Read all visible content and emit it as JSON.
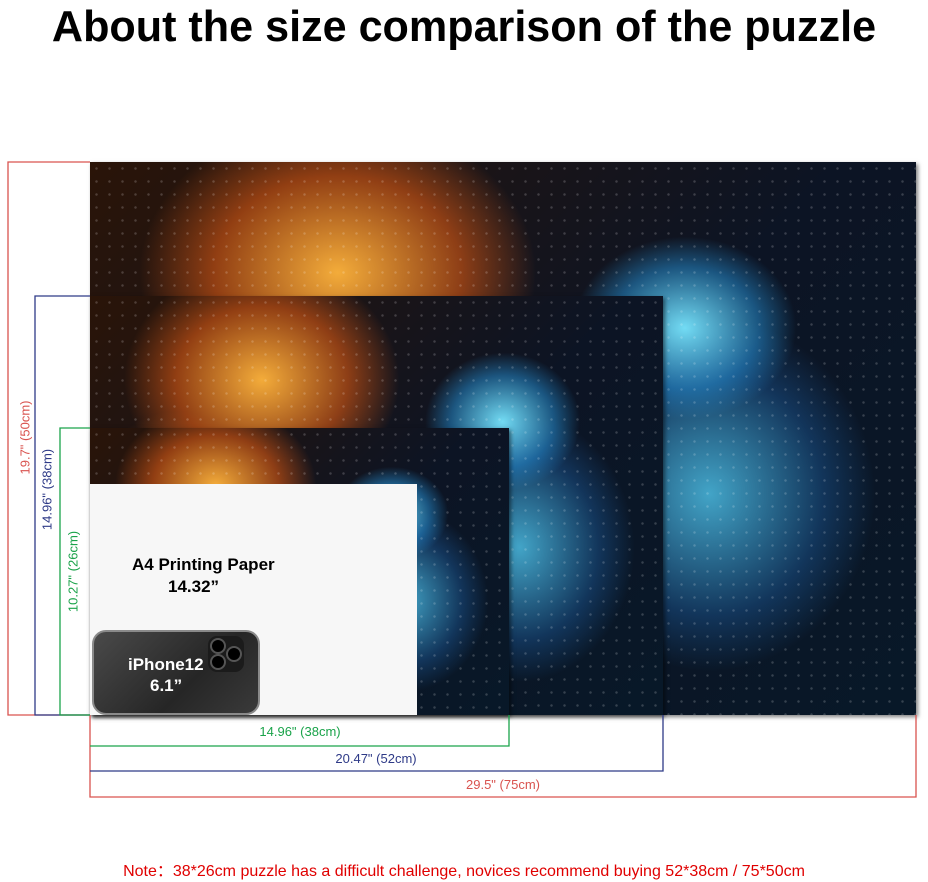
{
  "title": "About the size comparison of the puzzle",
  "puzzles": {
    "large": {
      "width_label": "29.5\" (75cm)",
      "height_label": "19.7\" (50cm)",
      "color": "#d9534f"
    },
    "medium": {
      "width_label": "20.47\" (52cm)",
      "height_label": "14.96\" (38cm)",
      "color": "#2e3a87"
    },
    "small": {
      "width_label": "14.96\" (38cm)",
      "height_label": "10.27\" (26cm)",
      "color": "#1aa34a"
    }
  },
  "paper": {
    "label": "A4 Printing Paper",
    "size": "14.32”"
  },
  "phone": {
    "label": "iPhone12",
    "size": "6.1”"
  },
  "note": "Note：38*26cm puzzle has a difficult challenge, novices recommend buying 52*38cm / 75*50cm"
}
